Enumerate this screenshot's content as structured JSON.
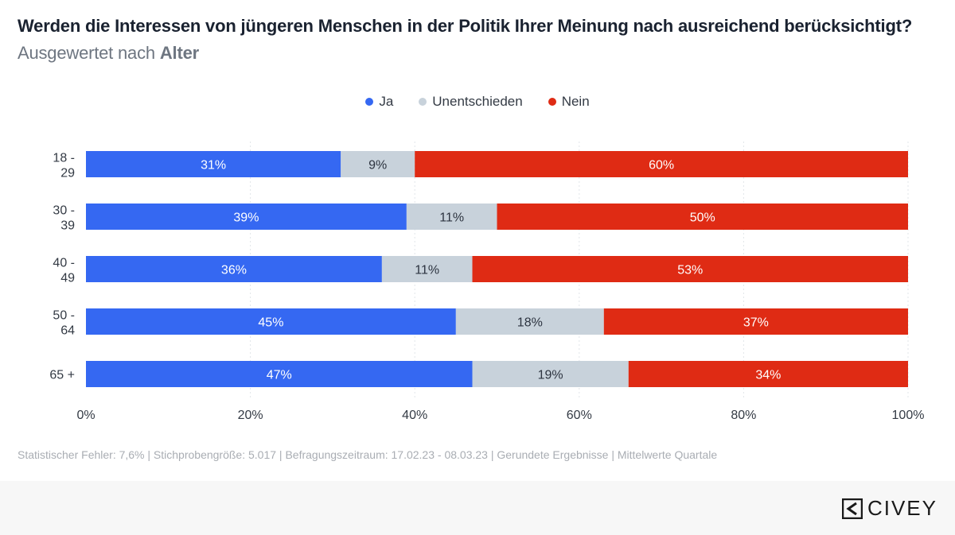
{
  "title": {
    "main": "Werden die Interessen von jüngeren Menschen in der Politik Ihrer Meinung nach ausreichend berücksichtigt?",
    "sub_prefix": "Ausgewertet nach",
    "sub_bold": "Alter"
  },
  "legend": [
    {
      "label": "Ja",
      "color": "#3568f2"
    },
    {
      "label": "Unentschieden",
      "color": "#c8d2db"
    },
    {
      "label": "Nein",
      "color": "#df2b14"
    }
  ],
  "footer": "Statistischer Fehler: 7,6% | Stichprobengröße: 5.017 | Befragungszeitraum: 17.02.23 - 08.03.23 | Gerundete Ergebnisse | Mittelwerte Quartale",
  "logo": {
    "text": "CIVEY"
  },
  "chart_data": {
    "type": "bar",
    "orientation": "horizontal",
    "stacked": true,
    "categories": [
      [
        "18 -",
        "29"
      ],
      [
        "30 -",
        "39"
      ],
      [
        "40 -",
        "49"
      ],
      [
        "50 -",
        "64"
      ],
      [
        "65 +"
      ]
    ],
    "series": [
      {
        "name": "Ja",
        "color": "#3568f2",
        "label_color": "#ffffff",
        "values": [
          31,
          39,
          36,
          45,
          47
        ]
      },
      {
        "name": "Unentschieden",
        "color": "#c8d2db",
        "label_color": "#2d3440",
        "values": [
          9,
          11,
          11,
          18,
          19
        ]
      },
      {
        "name": "Nein",
        "color": "#df2b14",
        "label_color": "#ffffff",
        "values": [
          60,
          50,
          53,
          37,
          34
        ]
      }
    ],
    "xlim": [
      0,
      100
    ],
    "xticks": [
      "0%",
      "20%",
      "40%",
      "60%",
      "80%",
      "100%"
    ],
    "xticks_values": [
      0,
      20,
      40,
      60,
      80,
      100
    ],
    "grid": true,
    "value_suffix": "%"
  }
}
